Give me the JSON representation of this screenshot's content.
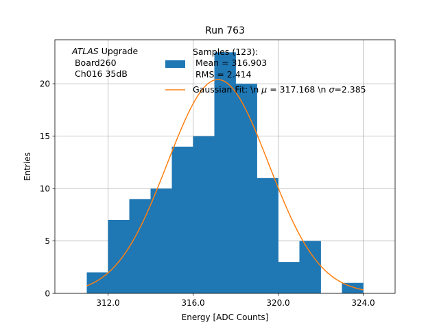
{
  "chart_data": {
    "type": "bar",
    "title": "Run 763",
    "xlabel": "Energy [ADC Counts]",
    "ylabel": "Entries",
    "xlim": [
      309.5,
      325.5
    ],
    "ylim": [
      0,
      24.2
    ],
    "grid": true,
    "xticks": [
      312,
      316,
      320,
      324
    ],
    "xtick_labels": [
      "312.0",
      "316.0",
      "320.0",
      "324.0"
    ],
    "yticks": [
      0,
      5,
      10,
      15,
      20
    ],
    "ytick_labels": [
      "0",
      "5",
      "10",
      "15",
      "20"
    ],
    "bin_edges": [
      311,
      312,
      313,
      314,
      315,
      316,
      317,
      318,
      319,
      320,
      321,
      322,
      323,
      324
    ],
    "counts": [
      2,
      7,
      9,
      10,
      14,
      15,
      23,
      20,
      11,
      3,
      5,
      0,
      1
    ],
    "bar_color": "#1f77b4",
    "fit": {
      "name": "Gaussian Fit",
      "mu": 317.168,
      "sigma": 2.385,
      "amplitude": 20.4,
      "x_range": [
        311,
        324
      ],
      "color": "#ff7f0e"
    },
    "annotation": {
      "italic": "ATLAS",
      "rest": " Upgrade",
      "line2": " Board260",
      "line3": " Ch016 35dB"
    },
    "legend": {
      "placement": "top-right",
      "hist_line1": "Samples (123):",
      "hist_line2": " Mean = 316.903",
      "hist_line3": " RMS = 2.414",
      "fit_prefix": "Gaussian Fit: \\n ",
      "fit_mu_symbol": "μ",
      "fit_mu_text": " = 317.168 \\n ",
      "fit_sigma_symbol": "σ",
      "fit_sigma_text": "=2.385"
    }
  }
}
